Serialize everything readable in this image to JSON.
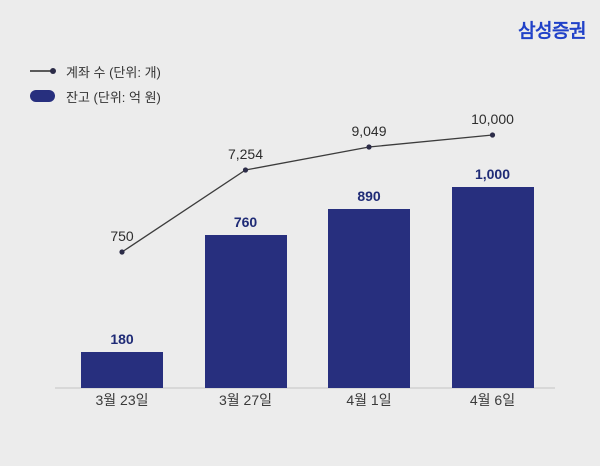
{
  "brand": {
    "logo": "삼성증권",
    "color": "#2041c8"
  },
  "legend": {
    "items": [
      {
        "swatch": "line-with-dot",
        "label": "계좌 수 (단위: 개)"
      },
      {
        "swatch": "bar",
        "label": "잔고 (단위: 억 원)"
      }
    ]
  },
  "chart_data": {
    "type": "combo",
    "categories": [
      "3월 23일",
      "3월 27일",
      "4월 1일",
      "4월 6일"
    ],
    "series": [
      {
        "name": "계좌 수 (단위: 개)",
        "type": "line",
        "values": [
          750,
          7254,
          9049,
          10000
        ],
        "labels": [
          "750",
          "7,254",
          "9,049",
          "10,000"
        ],
        "color": "#3c3c3c",
        "dot_color": "#2c2c48"
      },
      {
        "name": "잔고 (단위: 억 원)",
        "type": "bar",
        "values": [
          180,
          760,
          890,
          1000
        ],
        "labels": [
          "180",
          "760",
          "890",
          "1,000"
        ],
        "color": "#272f7e",
        "label_color": "#1f2b76"
      }
    ],
    "bar_ylim": [
      0,
      1000
    ],
    "line_ylim": [
      750,
      10000
    ],
    "grid": false,
    "legend_position": "top-left",
    "data_labels": true
  },
  "colors": {
    "background": "#ececec",
    "axis_line": "#d8d8d8",
    "x_label": "#3a3a3a"
  }
}
